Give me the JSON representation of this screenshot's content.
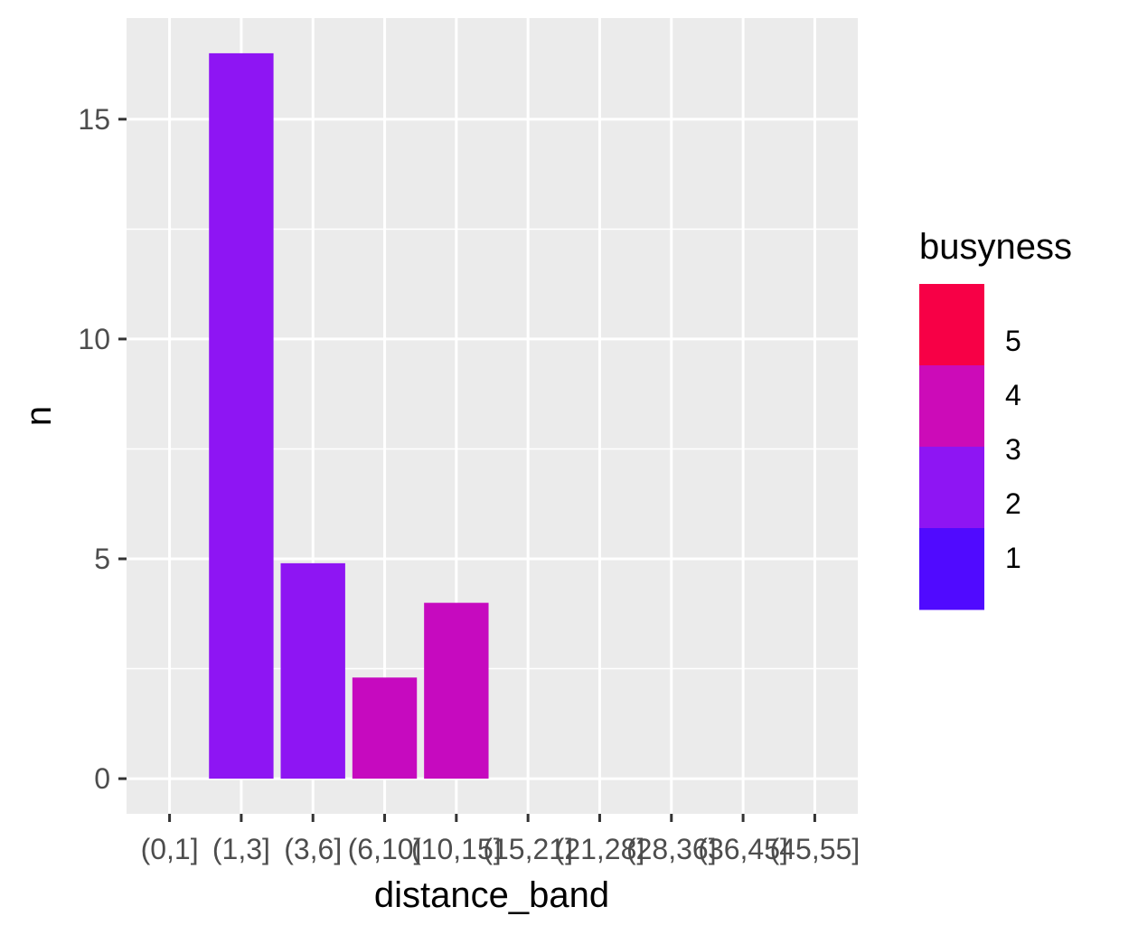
{
  "chart_data": {
    "type": "bar",
    "xlabel": "distance_band",
    "ylabel": "n",
    "categories": [
      "(0,1]",
      "(1,3]",
      "(3,6]",
      "(6,10]",
      "(10,15]",
      "(15,21]",
      "(21,28]",
      "(28,36]",
      "(36,45]",
      "(45,55]"
    ],
    "values": [
      null,
      16.5,
      4.9,
      2.3,
      4.0,
      null,
      null,
      null,
      null,
      null
    ],
    "fill_busyness": [
      null,
      2.5,
      2.5,
      3.7,
      3.7,
      null,
      null,
      null,
      null,
      null
    ],
    "yticks": [
      0,
      5,
      10,
      15
    ],
    "ylim": [
      -0.8,
      17.3
    ],
    "grid": true,
    "legend": {
      "title": "busyness",
      "position": "right",
      "labels": [
        "5",
        "4",
        "3",
        "2",
        "1"
      ],
      "colors": [
        "#F70046",
        "#CC0BB8",
        "#8E15F3",
        "#500AFF"
      ]
    },
    "colors": {
      "panel": "#EBEBEB",
      "grid": "#FFFFFF",
      "busyness_2_3": "#8E15F3",
      "busyness_3_4": "#C60ABF"
    }
  }
}
